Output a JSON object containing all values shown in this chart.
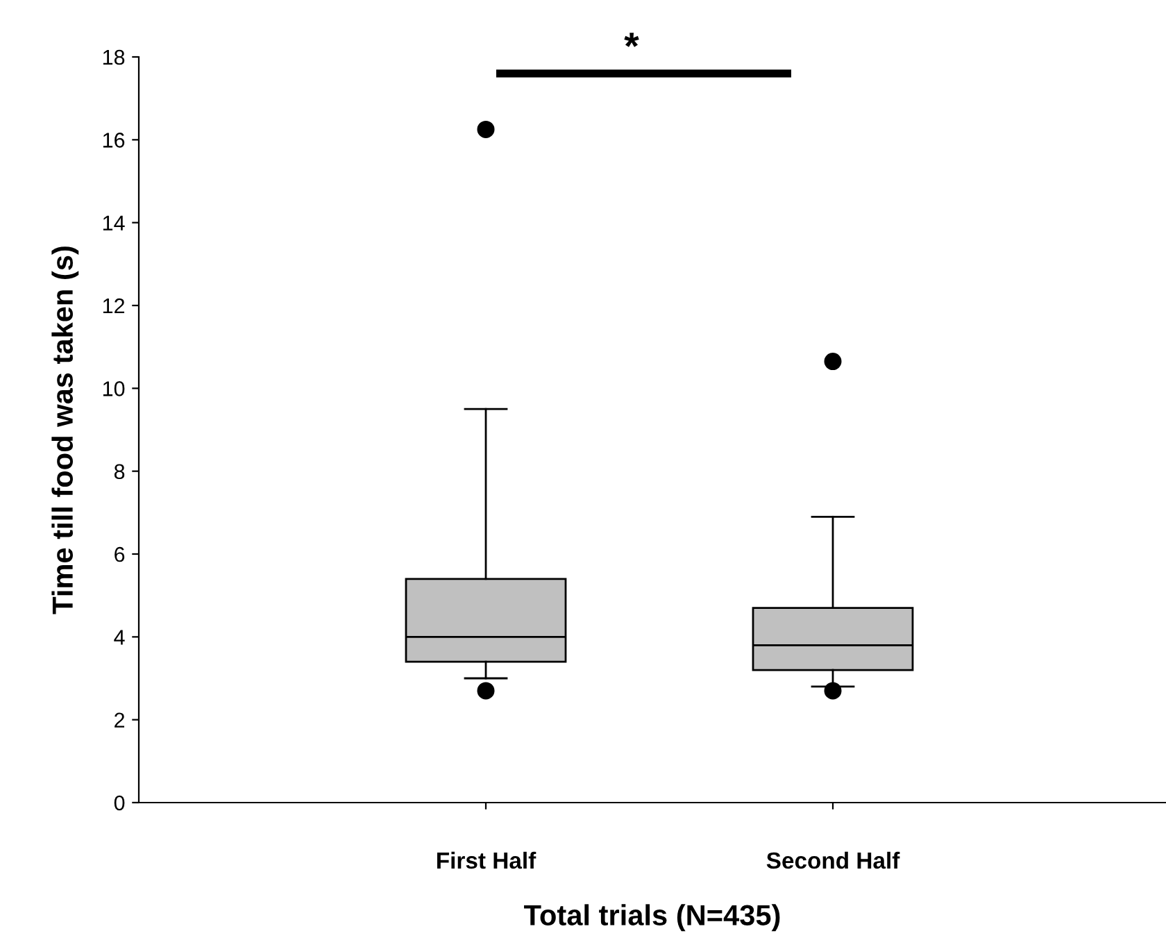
{
  "chart_data": {
    "type": "box",
    "xlabel": "Total trials (N=435)",
    "ylabel": "Time till food was taken (s)",
    "categories": [
      "First Half",
      "Second Half"
    ],
    "boxes": [
      {
        "low": 3.0,
        "q1": 3.4,
        "median": 4.0,
        "q3": 5.4,
        "high": 9.5,
        "outliers": [
          16.25,
          2.7
        ]
      },
      {
        "low": 2.8,
        "q1": 3.2,
        "median": 3.8,
        "q3": 4.7,
        "high": 6.9,
        "outliers": [
          10.65,
          2.7
        ]
      }
    ],
    "color": "#c0c0c0",
    "ylim": [
      0,
      18
    ],
    "yticks": [
      0,
      2,
      4,
      6,
      8,
      10,
      12,
      14,
      16,
      18
    ],
    "grid": false,
    "annotations": [
      "*"
    ]
  }
}
